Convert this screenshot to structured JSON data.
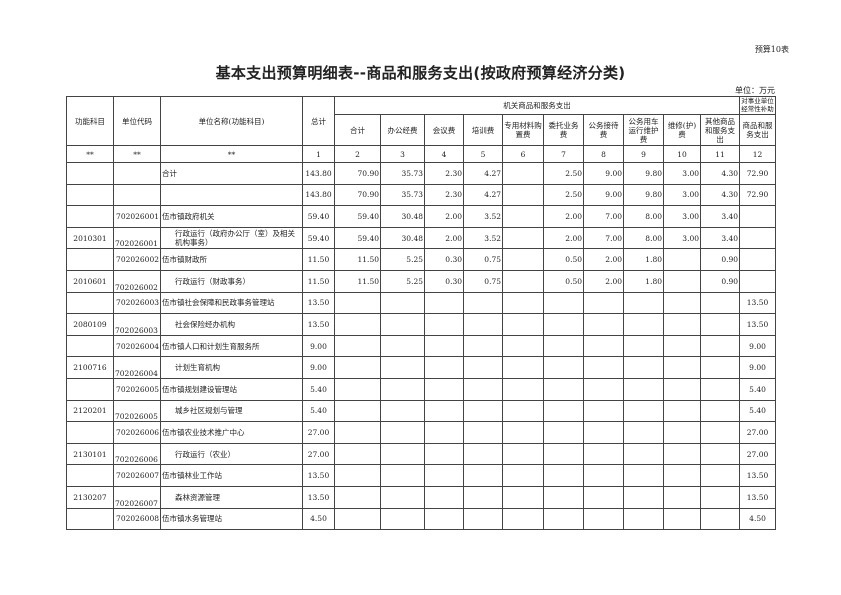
{
  "form_no": "预算10表",
  "title": "基本支出预算明细表--商品和服务支出(按政府预算经济分类)",
  "unit": "单位：万元",
  "headers": {
    "func_subject": "功能科目",
    "unit_code": "单位代码",
    "unit_name": "单位名称(功能科目)",
    "total": "总计",
    "group": "机关商品和服务支出",
    "subsidy_group": "对事业单位经常性补助",
    "columns": [
      "合计",
      "办公经费",
      "会议费",
      "培训费",
      "专用材料购置费",
      "委托业务费",
      "公务接待费",
      "公务用车运行维护费",
      "维修(护)费",
      "其他商品和服务支出"
    ],
    "subsidy_col": "商品和服务支出"
  },
  "index_row": [
    "**",
    "**",
    "**",
    "1",
    "2",
    "3",
    "4",
    "5",
    "6",
    "7",
    "8",
    "9",
    "10",
    "11",
    "12"
  ],
  "rows": [
    {
      "func": "",
      "code": "",
      "name": "合计",
      "total": "143.80",
      "vals": [
        "70.90",
        "35.73",
        "2.30",
        "4.27",
        "",
        "2.50",
        "9.00",
        "9.80",
        "3.00",
        "4.30"
      ],
      "subsidy": "72.90",
      "sub": false
    },
    {
      "func": "",
      "code": "",
      "name": "",
      "total": "143.80",
      "vals": [
        "70.90",
        "35.73",
        "2.30",
        "4.27",
        "",
        "2.50",
        "9.00",
        "9.80",
        "3.00",
        "4.30"
      ],
      "subsidy": "72.90",
      "sub": false
    },
    {
      "func": "",
      "code": "702026001",
      "name": "伍市镇政府机关",
      "total": "59.40",
      "vals": [
        "59.40",
        "30.48",
        "2.00",
        "3.52",
        "",
        "2.00",
        "7.00",
        "8.00",
        "3.00",
        "3.40"
      ],
      "subsidy": "",
      "sub": false
    },
    {
      "func": "2010301",
      "code": "702026001",
      "name": "行政运行（政府办公厅（室）及相关机构事务）",
      "total": "59.40",
      "vals": [
        "59.40",
        "30.48",
        "2.00",
        "3.52",
        "",
        "2.00",
        "7.00",
        "8.00",
        "3.00",
        "3.40"
      ],
      "subsidy": "",
      "sub": true
    },
    {
      "func": "",
      "code": "702026002",
      "name": "伍市镇财政所",
      "total": "11.50",
      "vals": [
        "11.50",
        "5.25",
        "0.30",
        "0.75",
        "",
        "0.50",
        "2.00",
        "1.80",
        "",
        "0.90"
      ],
      "subsidy": "",
      "sub": false
    },
    {
      "func": "2010601",
      "code": "702026002",
      "name": "行政运行（财政事务）",
      "total": "11.50",
      "vals": [
        "11.50",
        "5.25",
        "0.30",
        "0.75",
        "",
        "0.50",
        "2.00",
        "1.80",
        "",
        "0.90"
      ],
      "subsidy": "",
      "sub": true
    },
    {
      "func": "",
      "code": "702026003",
      "name": "伍市镇社会保障和民政事务管理站",
      "total": "13.50",
      "vals": [
        "",
        "",
        "",
        "",
        "",
        "",
        "",
        "",
        "",
        ""
      ],
      "subsidy": "13.50",
      "sub": false
    },
    {
      "func": "2080109",
      "code": "702026003",
      "name": "社会保险经办机构",
      "total": "13.50",
      "vals": [
        "",
        "",
        "",
        "",
        "",
        "",
        "",
        "",
        "",
        ""
      ],
      "subsidy": "13.50",
      "sub": true
    },
    {
      "func": "",
      "code": "702026004",
      "name": "伍市镇人口和计划生育服务所",
      "total": "9.00",
      "vals": [
        "",
        "",
        "",
        "",
        "",
        "",
        "",
        "",
        "",
        ""
      ],
      "subsidy": "9.00",
      "sub": false
    },
    {
      "func": "2100716",
      "code": "702026004",
      "name": "计划生育机构",
      "total": "9.00",
      "vals": [
        "",
        "",
        "",
        "",
        "",
        "",
        "",
        "",
        "",
        ""
      ],
      "subsidy": "9.00",
      "sub": true
    },
    {
      "func": "",
      "code": "702026005",
      "name": "伍市镇规划建设管理站",
      "total": "5.40",
      "vals": [
        "",
        "",
        "",
        "",
        "",
        "",
        "",
        "",
        "",
        ""
      ],
      "subsidy": "5.40",
      "sub": false
    },
    {
      "func": "2120201",
      "code": "702026005",
      "name": "城乡社区规划与管理",
      "total": "5.40",
      "vals": [
        "",
        "",
        "",
        "",
        "",
        "",
        "",
        "",
        "",
        ""
      ],
      "subsidy": "5.40",
      "sub": true
    },
    {
      "func": "",
      "code": "702026006",
      "name": "伍市镇农业技术推广中心",
      "total": "27.00",
      "vals": [
        "",
        "",
        "",
        "",
        "",
        "",
        "",
        "",
        "",
        ""
      ],
      "subsidy": "27.00",
      "sub": false
    },
    {
      "func": "2130101",
      "code": "702026006",
      "name": "行政运行（农业）",
      "total": "27.00",
      "vals": [
        "",
        "",
        "",
        "",
        "",
        "",
        "",
        "",
        "",
        ""
      ],
      "subsidy": "27.00",
      "sub": true
    },
    {
      "func": "",
      "code": "702026007",
      "name": "伍市镇林业工作站",
      "total": "13.50",
      "vals": [
        "",
        "",
        "",
        "",
        "",
        "",
        "",
        "",
        "",
        ""
      ],
      "subsidy": "13.50",
      "sub": false
    },
    {
      "func": "2130207",
      "code": "702026007",
      "name": "森林资源管理",
      "total": "13.50",
      "vals": [
        "",
        "",
        "",
        "",
        "",
        "",
        "",
        "",
        "",
        ""
      ],
      "subsidy": "13.50",
      "sub": true
    },
    {
      "func": "",
      "code": "702026008",
      "name": "伍市镇水务管理站",
      "total": "4.50",
      "vals": [
        "",
        "",
        "",
        "",
        "",
        "",
        "",
        "",
        "",
        ""
      ],
      "subsidy": "4.50",
      "sub": false
    }
  ]
}
